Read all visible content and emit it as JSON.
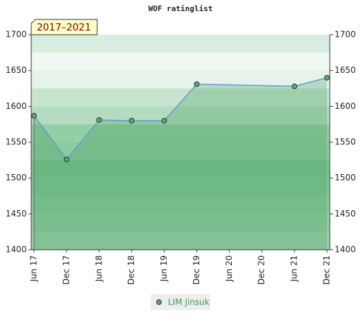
{
  "chart_data": {
    "type": "line",
    "title": "WOF ratinglist",
    "annotation": "2017–2021",
    "categories": [
      "Jun 17",
      "Dec 17",
      "Jun 18",
      "Dec 18",
      "Jun 19",
      "Dec 19",
      "Jun 20",
      "Dec 20",
      "Jun 21",
      "Dec 21"
    ],
    "series": [
      {
        "name": "LIM Jinsuk",
        "color": "#5b9bd5",
        "marker_color": "#5aaa6a",
        "values": [
          1587,
          1526,
          1581,
          1580,
          1580,
          1631,
          null,
          null,
          1628,
          1640
        ]
      }
    ],
    "connect_gaps": true,
    "ylim": [
      1400,
      1700
    ],
    "yticks": [
      1400,
      1450,
      1500,
      1550,
      1600,
      1650,
      1700
    ],
    "y2lim": [
      1400,
      1700
    ],
    "y2ticks": [
      1400,
      1450,
      1500,
      1550,
      1600,
      1650,
      1700
    ]
  }
}
